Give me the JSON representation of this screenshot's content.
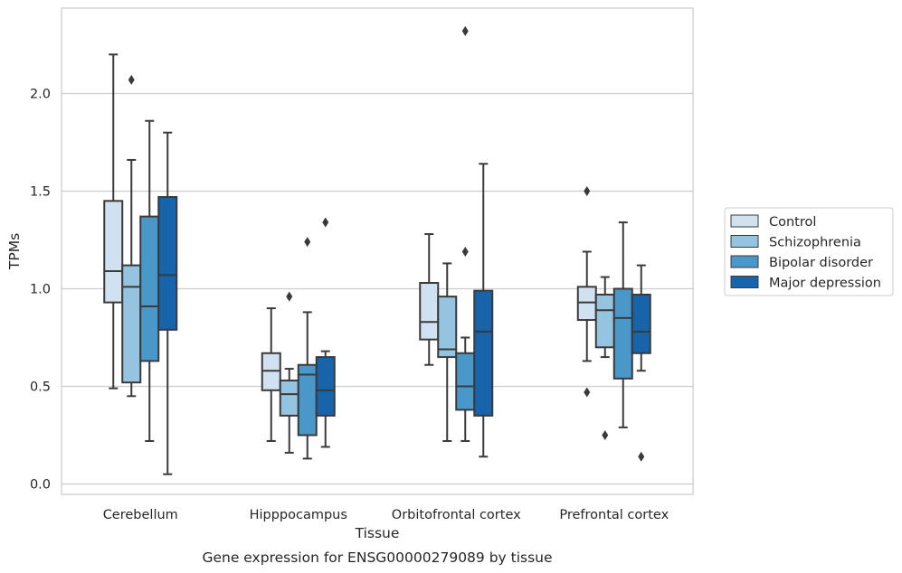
{
  "caption": "Gene expression for ENSG00000279089 by tissue",
  "chart_data": {
    "type": "box",
    "xlabel": "Tissue",
    "ylabel": "TPMs",
    "ylim": [
      -0.04,
      2.44
    ],
    "yticks": [
      0.0,
      0.5,
      1.0,
      1.5,
      2.0
    ],
    "ytick_labels": [
      "0.0",
      "0.5",
      "1.0",
      "1.5",
      "2.0"
    ],
    "grid": "horizontal",
    "legend_position": "right",
    "categories": [
      "Cerebellum",
      "Hipppocampus",
      "Orbitofrontal cortex",
      "Prefrontal cortex"
    ],
    "series": [
      {
        "name": "Control",
        "color": "#d0e1f2",
        "boxes": [
          {
            "whisker_low": 0.49,
            "q1": 0.93,
            "median": 1.09,
            "q3": 1.45,
            "whisker_high": 2.2,
            "outliers": []
          },
          {
            "whisker_low": 0.22,
            "q1": 0.48,
            "median": 0.58,
            "q3": 0.67,
            "whisker_high": 0.9,
            "outliers": []
          },
          {
            "whisker_low": 0.61,
            "q1": 0.74,
            "median": 0.83,
            "q3": 1.03,
            "whisker_high": 1.28,
            "outliers": []
          },
          {
            "whisker_low": 0.63,
            "q1": 0.84,
            "median": 0.93,
            "q3": 1.01,
            "whisker_high": 1.19,
            "outliers": [
              1.5,
              0.47
            ]
          }
        ]
      },
      {
        "name": "Schizophrenia",
        "color": "#94c4df",
        "boxes": [
          {
            "whisker_low": 0.45,
            "q1": 0.52,
            "median": 1.01,
            "q3": 1.12,
            "whisker_high": 1.66,
            "outliers": [
              2.07
            ]
          },
          {
            "whisker_low": 0.16,
            "q1": 0.35,
            "median": 0.46,
            "q3": 0.53,
            "whisker_high": 0.59,
            "outliers": [
              0.96
            ]
          },
          {
            "whisker_low": 0.22,
            "q1": 0.65,
            "median": 0.69,
            "q3": 0.96,
            "whisker_high": 1.13,
            "outliers": []
          },
          {
            "whisker_low": 0.65,
            "q1": 0.7,
            "median": 0.89,
            "q3": 0.97,
            "whisker_high": 1.06,
            "outliers": [
              0.25
            ]
          }
        ]
      },
      {
        "name": "Bipolar disorder",
        "color": "#4a98c9",
        "boxes": [
          {
            "whisker_low": 0.22,
            "q1": 0.63,
            "median": 0.91,
            "q3": 1.37,
            "whisker_high": 1.86,
            "outliers": []
          },
          {
            "whisker_low": 0.13,
            "q1": 0.25,
            "median": 0.56,
            "q3": 0.61,
            "whisker_high": 0.88,
            "outliers": [
              1.24
            ]
          },
          {
            "whisker_low": 0.22,
            "q1": 0.38,
            "median": 0.5,
            "q3": 0.67,
            "whisker_high": 0.75,
            "outliers": [
              1.19,
              2.32
            ]
          },
          {
            "whisker_low": 0.29,
            "q1": 0.54,
            "median": 0.85,
            "q3": 1.0,
            "whisker_high": 1.34,
            "outliers": []
          }
        ]
      },
      {
        "name": "Major depression",
        "color": "#1764ab",
        "boxes": [
          {
            "whisker_low": 0.05,
            "q1": 0.79,
            "median": 1.07,
            "q3": 1.47,
            "whisker_high": 1.8,
            "outliers": []
          },
          {
            "whisker_low": 0.19,
            "q1": 0.35,
            "median": 0.48,
            "q3": 0.65,
            "whisker_high": 0.68,
            "outliers": [
              1.34
            ]
          },
          {
            "whisker_low": 0.14,
            "q1": 0.35,
            "median": 0.78,
            "q3": 0.99,
            "whisker_high": 1.64,
            "outliers": []
          },
          {
            "whisker_low": 0.58,
            "q1": 0.67,
            "median": 0.78,
            "q3": 0.97,
            "whisker_high": 1.12,
            "outliers": [
              0.14
            ]
          }
        ]
      }
    ]
  }
}
